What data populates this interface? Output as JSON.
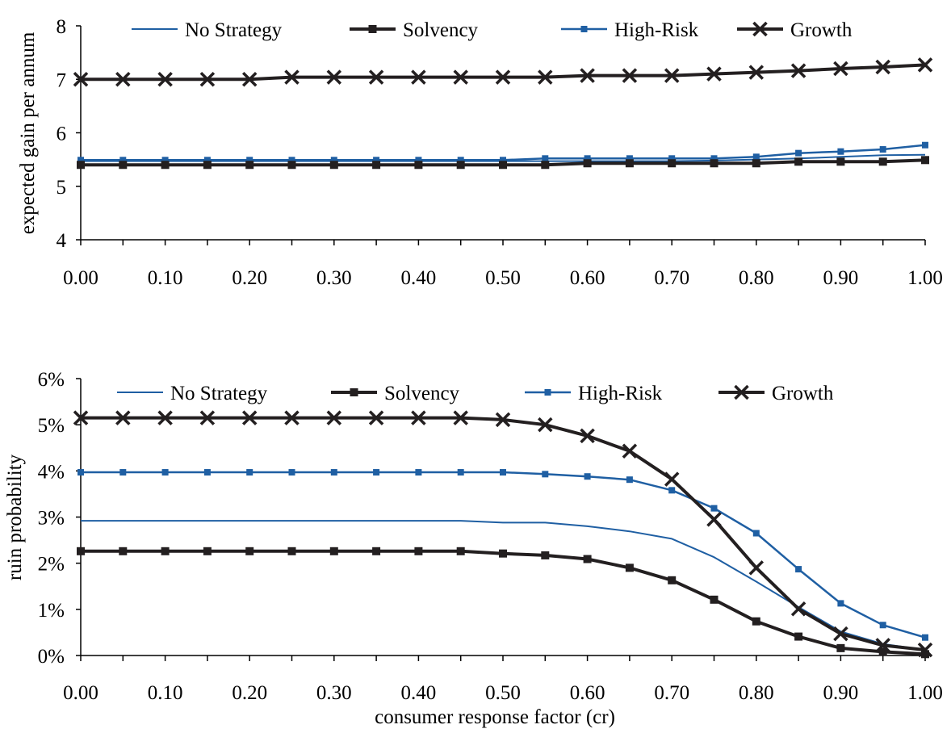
{
  "colors": {
    "dark": "#231f20",
    "blue": "#1f5fa3"
  },
  "chart_data": [
    {
      "type": "line",
      "title": "",
      "xlabel": "",
      "ylabel": "expected gain per annum",
      "x": [
        0.0,
        0.05,
        0.1,
        0.15,
        0.2,
        0.25,
        0.3,
        0.35,
        0.4,
        0.45,
        0.5,
        0.55,
        0.6,
        0.65,
        0.7,
        0.75,
        0.8,
        0.85,
        0.9,
        0.95,
        1.0
      ],
      "xticks": [
        "0.00",
        "0.10",
        "0.20",
        "0.30",
        "0.40",
        "0.50",
        "0.60",
        "0.70",
        "0.80",
        "0.90",
        "1.00"
      ],
      "ylim": [
        4,
        8
      ],
      "yticks": [
        "4",
        "5",
        "6",
        "7",
        "8"
      ],
      "legend_position": "top",
      "series": [
        {
          "name": "No Strategy",
          "style": "thin-blue",
          "values": [
            5.47,
            5.47,
            5.47,
            5.47,
            5.47,
            5.47,
            5.47,
            5.47,
            5.47,
            5.47,
            5.47,
            5.47,
            5.47,
            5.47,
            5.47,
            5.48,
            5.5,
            5.52,
            5.55,
            5.58,
            5.59
          ]
        },
        {
          "name": "Solvency",
          "style": "thick-dark-square",
          "values": [
            5.4,
            5.4,
            5.4,
            5.4,
            5.4,
            5.4,
            5.4,
            5.4,
            5.4,
            5.4,
            5.4,
            5.4,
            5.43,
            5.43,
            5.43,
            5.43,
            5.43,
            5.46,
            5.46,
            5.46,
            5.49
          ]
        },
        {
          "name": "High-Risk",
          "style": "blue-square",
          "values": [
            5.49,
            5.49,
            5.49,
            5.49,
            5.49,
            5.49,
            5.49,
            5.49,
            5.49,
            5.49,
            5.49,
            5.52,
            5.52,
            5.52,
            5.52,
            5.52,
            5.55,
            5.62,
            5.65,
            5.69,
            5.77
          ]
        },
        {
          "name": "Growth",
          "style": "thick-dark-x",
          "values": [
            7.0,
            7.0,
            7.0,
            7.0,
            7.0,
            7.04,
            7.04,
            7.04,
            7.04,
            7.04,
            7.04,
            7.04,
            7.07,
            7.07,
            7.07,
            7.1,
            7.13,
            7.16,
            7.2,
            7.23,
            7.27
          ]
        }
      ]
    },
    {
      "type": "line",
      "title": "",
      "xlabel": "consumer response factor (cr)",
      "ylabel": "ruin probability",
      "x": [
        0.0,
        0.05,
        0.1,
        0.15,
        0.2,
        0.25,
        0.3,
        0.35,
        0.4,
        0.45,
        0.5,
        0.55,
        0.6,
        0.65,
        0.7,
        0.75,
        0.8,
        0.85,
        0.9,
        0.95,
        1.0
      ],
      "xticks": [
        "0.00",
        "0.10",
        "0.20",
        "0.30",
        "0.40",
        "0.50",
        "0.60",
        "0.70",
        "0.80",
        "0.90",
        "1.00"
      ],
      "ylim": [
        0,
        6
      ],
      "yticks": [
        "0%",
        "1%",
        "2%",
        "3%",
        "4%",
        "5%",
        "6%"
      ],
      "legend_position": "top",
      "series": [
        {
          "name": "No Strategy",
          "style": "thin-blue",
          "values": [
            2.92,
            2.92,
            2.92,
            2.92,
            2.92,
            2.92,
            2.92,
            2.92,
            2.92,
            2.92,
            2.88,
            2.88,
            2.8,
            2.69,
            2.53,
            2.13,
            1.6,
            1.05,
            0.52,
            0.25,
            0.12
          ]
        },
        {
          "name": "Solvency",
          "style": "thick-dark-square",
          "values": [
            2.26,
            2.26,
            2.26,
            2.26,
            2.26,
            2.26,
            2.26,
            2.26,
            2.26,
            2.26,
            2.21,
            2.17,
            2.09,
            1.9,
            1.63,
            1.21,
            0.74,
            0.41,
            0.16,
            0.08,
            0.03
          ]
        },
        {
          "name": "High-Risk",
          "style": "blue-square",
          "values": [
            3.97,
            3.97,
            3.97,
            3.97,
            3.97,
            3.97,
            3.97,
            3.97,
            3.97,
            3.97,
            3.97,
            3.93,
            3.88,
            3.81,
            3.58,
            3.19,
            2.65,
            1.87,
            1.13,
            0.66,
            0.39
          ]
        },
        {
          "name": "Growth",
          "style": "thick-dark-x",
          "values": [
            5.15,
            5.15,
            5.15,
            5.15,
            5.15,
            5.15,
            5.15,
            5.15,
            5.15,
            5.15,
            5.11,
            5.0,
            4.76,
            4.43,
            3.82,
            2.95,
            1.9,
            1.01,
            0.47,
            0.22,
            0.12
          ]
        }
      ]
    }
  ]
}
